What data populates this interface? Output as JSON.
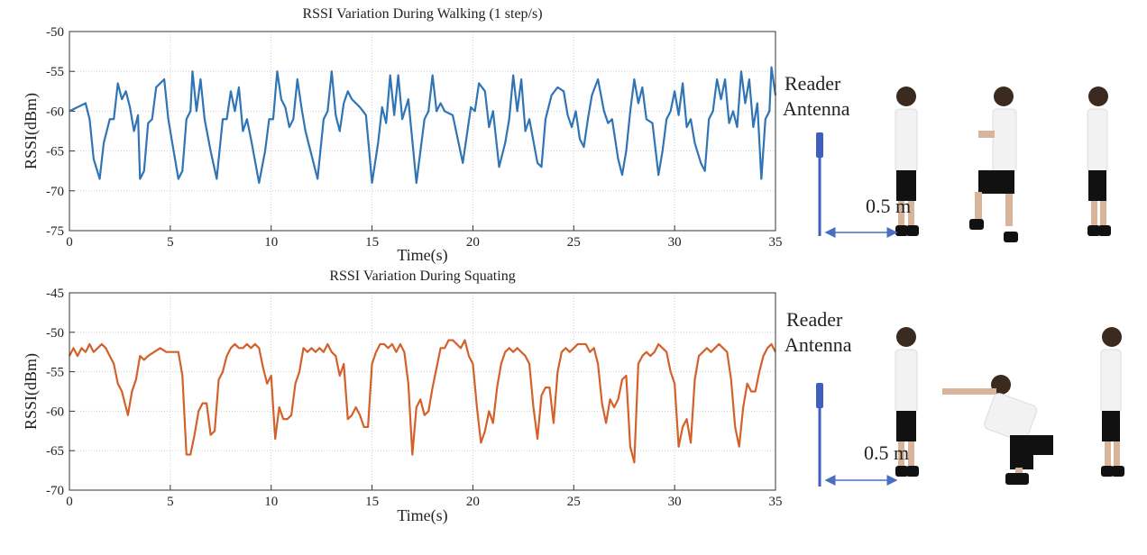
{
  "chart_data": [
    {
      "type": "line",
      "title": "RSSI Variation During Walking (1 step/s)",
      "xlabel": "Time(s)",
      "ylabel": "RSSI(dBm)",
      "xlim": [
        0,
        35
      ],
      "xticks": [
        0,
        5,
        10,
        15,
        20,
        25,
        30,
        35
      ],
      "ylim": [
        -75,
        -50
      ],
      "yticks": [
        -75,
        -70,
        -65,
        -60,
        -55,
        -50
      ],
      "grid": true,
      "annotations": [
        "Reader",
        "Antenna",
        "0.5 m"
      ],
      "x": [
        0,
        0.8,
        1.0,
        1.2,
        1.5,
        1.7,
        2.0,
        2.2,
        2.4,
        2.6,
        2.8,
        3.0,
        3.2,
        3.4,
        3.5,
        3.7,
        3.9,
        4.1,
        4.3,
        4.5,
        4.7,
        4.9,
        5.1,
        5.4,
        5.6,
        5.8,
        6.0,
        6.1,
        6.3,
        6.5,
        6.7,
        7.0,
        7.3,
        7.6,
        7.8,
        8.0,
        8.2,
        8.4,
        8.6,
        8.8,
        9.0,
        9.4,
        9.7,
        9.9,
        10.1,
        10.3,
        10.5,
        10.7,
        10.9,
        11.1,
        11.3,
        11.5,
        11.7,
        11.9,
        12.3,
        12.6,
        12.8,
        13.0,
        13.2,
        13.4,
        13.6,
        13.8,
        14.0,
        14.2,
        14.4,
        14.7,
        15.0,
        15.3,
        15.5,
        15.7,
        15.9,
        16.1,
        16.3,
        16.5,
        16.8,
        17.2,
        17.4,
        17.6,
        17.8,
        18.0,
        18.2,
        18.4,
        18.6,
        19.0,
        19.5,
        19.7,
        19.9,
        20.1,
        20.3,
        20.6,
        20.8,
        21.0,
        21.3,
        21.6,
        21.8,
        22.0,
        22.2,
        22.4,
        22.6,
        22.8,
        23.2,
        23.4,
        23.6,
        23.9,
        24.2,
        24.5,
        24.7,
        24.9,
        25.1,
        25.3,
        25.5,
        25.7,
        25.9,
        26.2,
        26.5,
        26.7,
        26.9,
        27.2,
        27.4,
        27.6,
        27.8,
        28.0,
        28.2,
        28.4,
        28.6,
        28.9,
        29.2,
        29.4,
        29.6,
        29.8,
        30.0,
        30.2,
        30.4,
        30.6,
        30.8,
        31.0,
        31.3,
        31.5,
        31.7,
        31.9,
        32.1,
        32.3,
        32.5,
        32.7,
        32.9,
        33.1,
        33.3,
        33.5,
        33.7,
        33.9,
        34.1,
        34.3,
        34.5,
        34.7,
        34.8,
        35.0
      ],
      "series": [
        {
          "color": "#2f74b5",
          "values": [
            -60,
            -59,
            -61,
            -66,
            -68.5,
            -64,
            -61,
            -61,
            -56.5,
            -58.5,
            -57.5,
            -59.5,
            -62.5,
            -60.5,
            -68.5,
            -67.5,
            -61.5,
            -61,
            -57,
            -56.5,
            -56,
            -61,
            -64,
            -68.5,
            -67.5,
            -61,
            -60,
            -55,
            -60,
            -56,
            -61,
            -65,
            -68.5,
            -61,
            -61,
            -57.5,
            -60,
            -57,
            -62.5,
            -61,
            -63.5,
            -69,
            -65,
            -61,
            -61,
            -55,
            -58.5,
            -59.5,
            -62,
            -61,
            -56,
            -59.5,
            -62.5,
            -64.5,
            -68.5,
            -61,
            -60,
            -55,
            -60.5,
            -62.5,
            -59,
            -57.5,
            -58.5,
            -59,
            -59.5,
            -60.5,
            -69,
            -64,
            -59.5,
            -61.5,
            -55.5,
            -60.5,
            -55.5,
            -61,
            -58.5,
            -69,
            -65,
            -61,
            -60,
            -55.5,
            -60,
            -59,
            -60,
            -60.5,
            -66.5,
            -63,
            -59.5,
            -60,
            -56.5,
            -57.5,
            -62,
            -60,
            -67,
            -64,
            -61,
            -55.5,
            -60,
            -56,
            -62.5,
            -61,
            -66.5,
            -67,
            -61,
            -58,
            -57,
            -57.5,
            -60.5,
            -62,
            -60,
            -63.5,
            -64.5,
            -61,
            -58,
            -56,
            -60,
            -61.5,
            -61,
            -66,
            -68,
            -65,
            -60,
            -56,
            -59,
            -57,
            -61,
            -61.5,
            -68,
            -65,
            -61,
            -60,
            -57.5,
            -60.5,
            -56.5,
            -62,
            -61,
            -64,
            -66.5,
            -67.5,
            -61,
            -60,
            -56,
            -58.5,
            -56,
            -61.5,
            -60,
            -62,
            -55,
            -59,
            -56,
            -62,
            -59,
            -68.5,
            -61,
            -60,
            -54.5,
            -58
          ]
        }
      ]
    },
    {
      "type": "line",
      "title": "RSSI Variation During Squating",
      "xlabel": "Time(s)",
      "ylabel": "RSSI(dBm)",
      "xlim": [
        0,
        35
      ],
      "xticks": [
        0,
        5,
        10,
        15,
        20,
        25,
        30,
        35
      ],
      "ylim": [
        -70,
        -45
      ],
      "yticks": [
        -70,
        -65,
        -60,
        -55,
        -50,
        -45
      ],
      "grid": true,
      "annotations": [
        "Reader",
        "Antenna",
        "0.5 m"
      ],
      "x": [
        0,
        0.2,
        0.4,
        0.6,
        0.8,
        1.0,
        1.2,
        1.4,
        1.6,
        1.8,
        2.0,
        2.2,
        2.4,
        2.6,
        2.9,
        3.1,
        3.3,
        3.5,
        3.7,
        3.9,
        4.2,
        4.5,
        4.8,
        5.1,
        5.4,
        5.6,
        5.8,
        6.0,
        6.2,
        6.4,
        6.6,
        6.8,
        7.0,
        7.2,
        7.4,
        7.6,
        7.8,
        8.0,
        8.2,
        8.4,
        8.6,
        8.8,
        9.0,
        9.2,
        9.4,
        9.6,
        9.8,
        10.0,
        10.2,
        10.4,
        10.6,
        10.8,
        11.0,
        11.2,
        11.4,
        11.6,
        11.8,
        12.0,
        12.2,
        12.4,
        12.6,
        12.8,
        13.0,
        13.2,
        13.4,
        13.6,
        13.8,
        14.0,
        14.2,
        14.4,
        14.6,
        14.8,
        15.0,
        15.2,
        15.4,
        15.6,
        15.8,
        16.0,
        16.2,
        16.4,
        16.6,
        16.8,
        17.0,
        17.2,
        17.4,
        17.6,
        17.8,
        18.0,
        18.2,
        18.4,
        18.6,
        18.8,
        19.0,
        19.2,
        19.4,
        19.6,
        19.8,
        20.0,
        20.2,
        20.4,
        20.6,
        20.8,
        21.0,
        21.2,
        21.4,
        21.6,
        21.8,
        22.0,
        22.2,
        22.4,
        22.6,
        22.8,
        23.0,
        23.2,
        23.4,
        23.6,
        23.8,
        24.0,
        24.2,
        24.4,
        24.6,
        24.8,
        25.0,
        25.2,
        25.4,
        25.6,
        25.8,
        26.0,
        26.2,
        26.4,
        26.6,
        26.8,
        27.0,
        27.2,
        27.4,
        27.6,
        27.8,
        28.0,
        28.2,
        28.4,
        28.6,
        28.8,
        29.0,
        29.2,
        29.4,
        29.6,
        29.8,
        30.0,
        30.2,
        30.4,
        30.6,
        30.8,
        31.0,
        31.2,
        31.4,
        31.6,
        31.8,
        32.0,
        32.2,
        32.4,
        32.6,
        32.8,
        33.0,
        33.2,
        33.4,
        33.6,
        33.8,
        34.0,
        34.2,
        34.4,
        34.6,
        34.8,
        35.0
      ],
      "series": [
        {
          "color": "#d4602a",
          "values": [
            -53,
            -52,
            -53,
            -52,
            -52.5,
            -51.5,
            -52.5,
            -52,
            -51.5,
            -52,
            -53,
            -54,
            -56.5,
            -57.5,
            -60.5,
            -57.5,
            -56,
            -53,
            -53.5,
            -53,
            -52.5,
            -52,
            -52.5,
            -52.5,
            -52.5,
            -55.5,
            -65.5,
            -65.5,
            -63,
            -60,
            -59,
            -59,
            -63,
            -62.5,
            -56,
            -55,
            -53,
            -52,
            -51.5,
            -52,
            -52,
            -51.5,
            -52,
            -51.5,
            -52,
            -54.5,
            -56.5,
            -55.5,
            -63.5,
            -59.5,
            -61,
            -61,
            -60.5,
            -56.5,
            -55,
            -52,
            -52.5,
            -52,
            -52.5,
            -52,
            -52.5,
            -51.5,
            -52.5,
            -53,
            -55.5,
            -54,
            -61,
            -60.5,
            -59.5,
            -60.5,
            -62,
            -62,
            -54,
            -52.5,
            -51.5,
            -51.5,
            -52,
            -51.5,
            -52.5,
            -51.5,
            -52.5,
            -56.5,
            -65.5,
            -59.5,
            -58.5,
            -60.5,
            -60,
            -57,
            -54.5,
            -52,
            -52,
            -51,
            -51,
            -51.5,
            -52,
            -51,
            -53,
            -54,
            -59.5,
            -64,
            -62.5,
            -60,
            -61.5,
            -57,
            -54,
            -52.5,
            -52,
            -52.5,
            -52,
            -52.5,
            -53,
            -54,
            -59.5,
            -63.5,
            -58,
            -57,
            -57,
            -61.5,
            -55,
            -52.5,
            -52,
            -52.5,
            -52,
            -51.5,
            -51.5,
            -51.5,
            -52.5,
            -52,
            -54,
            -59,
            -61.5,
            -58.5,
            -59.5,
            -58.5,
            -56,
            -55.5,
            -64.5,
            -66.5,
            -54,
            -53,
            -52.5,
            -53,
            -52.5,
            -51.5,
            -52,
            -52.5,
            -55,
            -56.5,
            -64.5,
            -62,
            -61,
            -64,
            -56,
            -53,
            -52.5,
            -52,
            -52.5,
            -52,
            -51.5,
            -52,
            -52.5,
            -56,
            -62,
            -64.5,
            -59.5,
            -56.5,
            -57.5,
            -57.5,
            -55,
            -53,
            -52,
            -51.5,
            -52.5
          ]
        }
      ]
    }
  ]
}
